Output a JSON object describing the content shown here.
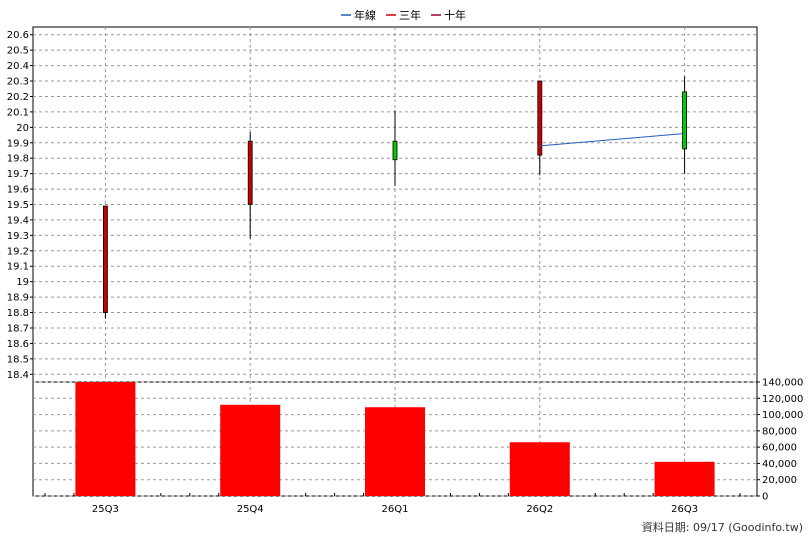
{
  "chart_data": {
    "type": "candlestick+bar",
    "legend": [
      {
        "label": "年線",
        "color": "#1f5fbf"
      },
      {
        "label": "三年",
        "color": "#cc0000"
      },
      {
        "label": "十年",
        "color": "#990033"
      }
    ],
    "categories": [
      "25Q3",
      "25Q4",
      "26Q1",
      "26Q2",
      "26Q3"
    ],
    "price_axis": {
      "ylim": [
        18.35,
        20.65
      ],
      "ticks": [
        "18.4",
        "18.5",
        "18.6",
        "18.7",
        "18.8",
        "18.9",
        "19",
        "19.1",
        "19.2",
        "19.3",
        "19.4",
        "19.5",
        "19.6",
        "19.7",
        "19.8",
        "19.9",
        "20",
        "20.1",
        "20.2",
        "20.3",
        "20.4",
        "20.5",
        "20.6"
      ]
    },
    "candles": [
      {
        "open": 18.8,
        "close": 19.49,
        "high": 19.49,
        "low": 18.76,
        "color": "#cc0000"
      },
      {
        "open": 19.5,
        "close": 19.91,
        "high": 19.97,
        "low": 19.28,
        "color": "#cc0000"
      },
      {
        "open": 19.91,
        "close": 19.79,
        "high": 20.11,
        "low": 19.62,
        "color": "#00cc00"
      },
      {
        "open": 19.82,
        "close": 20.3,
        "high": 20.3,
        "low": 19.69,
        "color": "#cc0000"
      },
      {
        "open": 20.23,
        "close": 19.86,
        "high": 20.33,
        "low": 19.7,
        "color": "#00cc00"
      }
    ],
    "year_line": {
      "name": "年線",
      "points": [
        {
          "category": "26Q2",
          "value": 19.88
        },
        {
          "category": "26Q3",
          "value": 19.96
        }
      ]
    },
    "volume_axis": {
      "ylim": [
        0,
        140000
      ],
      "ticks": [
        "0",
        "20,000",
        "40,000",
        "60,000",
        "80,000",
        "100,000",
        "120,000",
        "140,000"
      ]
    },
    "volume": [
      140000,
      112000,
      109000,
      66000,
      42000
    ],
    "volume_color": "#ff0000",
    "footer": "資料日期: 09/17 (Goodinfo.tw)"
  }
}
